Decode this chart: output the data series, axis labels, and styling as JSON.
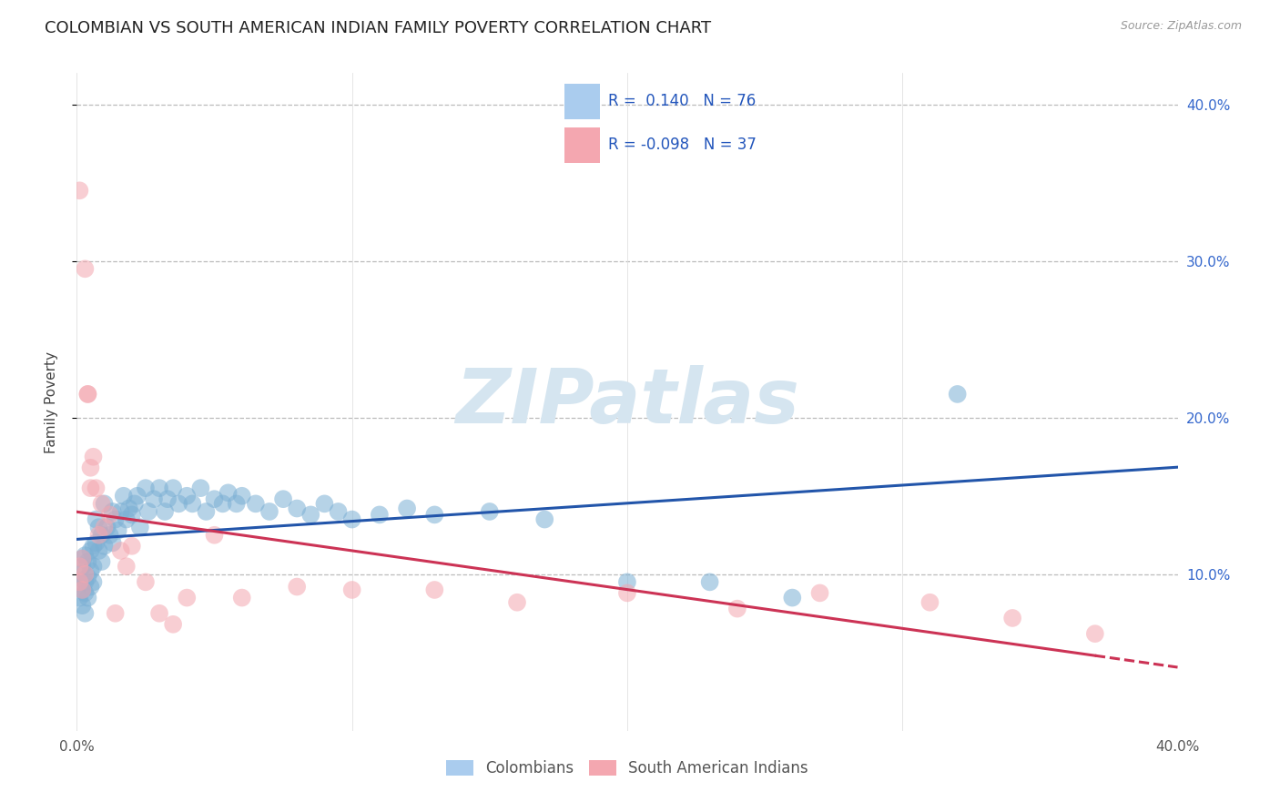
{
  "title": "COLOMBIAN VS SOUTH AMERICAN INDIAN FAMILY POVERTY CORRELATION CHART",
  "source": "Source: ZipAtlas.com",
  "ylabel": "Family Poverty",
  "xlim": [
    0,
    0.4
  ],
  "ylim": [
    0,
    0.42
  ],
  "r_blue": 0.14,
  "n_blue": 76,
  "r_pink": -0.098,
  "n_pink": 37,
  "blue_scatter": "#7BAFD4",
  "pink_scatter": "#F4A7B0",
  "trend_blue": "#2255AA",
  "trend_pink": "#CC3355",
  "watermark": "ZIPatlas",
  "watermark_color": "#D5E5F0",
  "legend_label_blue": "Colombians",
  "legend_label_pink": "South American Indians",
  "blue_legend_box": "#AACCEE",
  "pink_legend_box": "#F4A7B0",
  "colombian_x": [
    0.001,
    0.001,
    0.001,
    0.002,
    0.002,
    0.002,
    0.002,
    0.003,
    0.003,
    0.003,
    0.003,
    0.004,
    0.004,
    0.004,
    0.005,
    0.005,
    0.005,
    0.006,
    0.006,
    0.006,
    0.007,
    0.007,
    0.008,
    0.008,
    0.009,
    0.009,
    0.01,
    0.01,
    0.011,
    0.012,
    0.013,
    0.013,
    0.014,
    0.015,
    0.016,
    0.017,
    0.018,
    0.019,
    0.02,
    0.021,
    0.022,
    0.023,
    0.025,
    0.026,
    0.028,
    0.03,
    0.032,
    0.033,
    0.035,
    0.037,
    0.04,
    0.042,
    0.045,
    0.047,
    0.05,
    0.053,
    0.055,
    0.058,
    0.06,
    0.065,
    0.07,
    0.075,
    0.08,
    0.085,
    0.09,
    0.095,
    0.1,
    0.11,
    0.12,
    0.13,
    0.15,
    0.17,
    0.2,
    0.23,
    0.26,
    0.32
  ],
  "colombian_y": [
    0.1,
    0.095,
    0.085,
    0.11,
    0.105,
    0.09,
    0.08,
    0.112,
    0.095,
    0.088,
    0.075,
    0.108,
    0.098,
    0.085,
    0.115,
    0.102,
    0.092,
    0.118,
    0.105,
    0.095,
    0.135,
    0.12,
    0.13,
    0.115,
    0.125,
    0.108,
    0.145,
    0.118,
    0.13,
    0.125,
    0.14,
    0.12,
    0.135,
    0.128,
    0.14,
    0.15,
    0.135,
    0.142,
    0.138,
    0.145,
    0.15,
    0.13,
    0.155,
    0.14,
    0.148,
    0.155,
    0.14,
    0.148,
    0.155,
    0.145,
    0.15,
    0.145,
    0.155,
    0.14,
    0.148,
    0.145,
    0.152,
    0.145,
    0.15,
    0.145,
    0.14,
    0.148,
    0.142,
    0.138,
    0.145,
    0.14,
    0.135,
    0.138,
    0.142,
    0.138,
    0.14,
    0.135,
    0.095,
    0.095,
    0.085,
    0.215
  ],
  "sai_x": [
    0.001,
    0.001,
    0.001,
    0.002,
    0.002,
    0.003,
    0.003,
    0.004,
    0.004,
    0.005,
    0.005,
    0.006,
    0.007,
    0.008,
    0.009,
    0.01,
    0.012,
    0.014,
    0.016,
    0.018,
    0.02,
    0.025,
    0.03,
    0.035,
    0.04,
    0.05,
    0.06,
    0.08,
    0.1,
    0.13,
    0.16,
    0.2,
    0.24,
    0.27,
    0.31,
    0.34,
    0.37
  ],
  "sai_y": [
    0.105,
    0.095,
    0.345,
    0.11,
    0.09,
    0.295,
    0.1,
    0.215,
    0.215,
    0.168,
    0.155,
    0.175,
    0.155,
    0.125,
    0.145,
    0.13,
    0.138,
    0.075,
    0.115,
    0.105,
    0.118,
    0.095,
    0.075,
    0.068,
    0.085,
    0.125,
    0.085,
    0.092,
    0.09,
    0.09,
    0.082,
    0.088,
    0.078,
    0.088,
    0.082,
    0.072,
    0.062
  ]
}
